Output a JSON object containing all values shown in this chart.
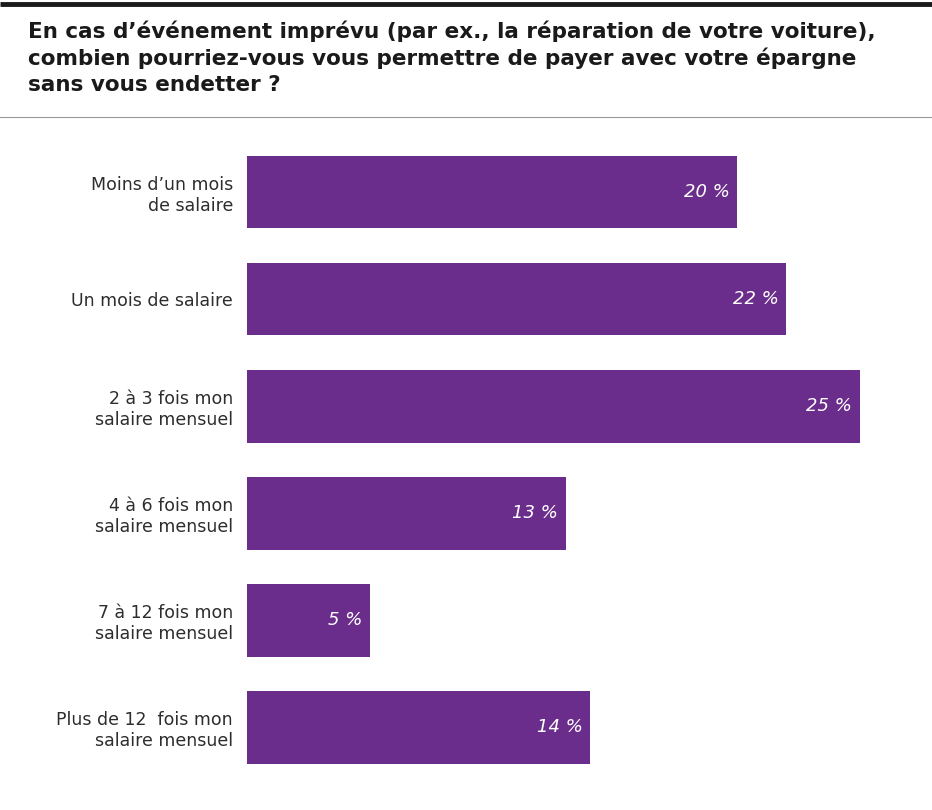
{
  "title": "En cas d’événement imprévu (par ex., la réparation de votre voiture),\ncombien pourriez-vous vous permettre de payer avec votre épargne\nsans vous endetter ?",
  "categories": [
    "Moins d’un mois\nde salaire",
    "Un mois de salaire",
    "2 à 3 fois mon\nsalaire mensuel",
    "4 à 6 fois mon\nsalaire mensuel",
    "7 à 12 fois mon\nsalaire mensuel",
    "Plus de 12  fois mon\nsalaire mensuel"
  ],
  "values": [
    20,
    22,
    25,
    13,
    5,
    14
  ],
  "bar_color": "#6b2d8b",
  "text_color": "#ffffff",
  "label_color": "#2d2d2d",
  "title_color": "#1a1a1a",
  "background_color": "#ffffff",
  "top_line_color": "#1a1a1a",
  "separator_color": "#999999",
  "xlim": [
    0,
    27
  ],
  "bar_height": 0.68,
  "title_fontsize": 15.5,
  "label_fontsize": 12.5,
  "value_fontsize": 13
}
